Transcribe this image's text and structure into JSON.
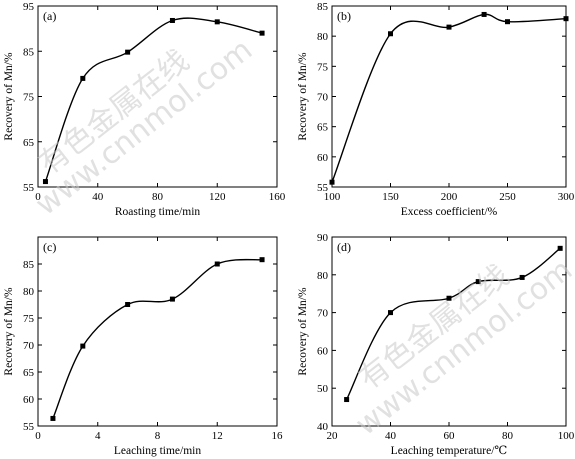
{
  "watermark": {
    "cn": "有色金属在线",
    "url": "www.cnnmol.com"
  },
  "chart_data": [
    {
      "type": "line",
      "panel_label": "(a)",
      "xlabel": "Roasting time/min",
      "ylabel": "Recovery of Mn/%",
      "xlim": [
        0,
        160
      ],
      "ylim": [
        55,
        95
      ],
      "xticks": [
        0,
        40,
        80,
        120,
        160
      ],
      "yticks": [
        55,
        65,
        75,
        85,
        95
      ],
      "x": [
        5,
        30,
        60,
        90,
        120,
        150
      ],
      "y": [
        56.2,
        79.0,
        84.8,
        91.8,
        91.5,
        89.0
      ],
      "grid": false
    },
    {
      "type": "line",
      "panel_label": "(b)",
      "xlabel": "Excess coefficient/%",
      "ylabel": "Recovery of Mn/%",
      "xlim": [
        100,
        300
      ],
      "ylim": [
        55,
        85
      ],
      "xticks": [
        100,
        150,
        200,
        250,
        300
      ],
      "yticks": [
        55,
        60,
        65,
        70,
        75,
        80,
        85
      ],
      "x": [
        100,
        150,
        200,
        230,
        250,
        300
      ],
      "y": [
        55.8,
        80.4,
        81.5,
        83.6,
        82.4,
        82.9
      ],
      "grid": false
    },
    {
      "type": "line",
      "panel_label": "(c)",
      "xlabel": "Leaching time/min",
      "ylabel": "Recovery of Mn/%",
      "xlim": [
        0,
        16
      ],
      "ylim": [
        55,
        90
      ],
      "xticks": [
        0,
        4,
        8,
        12,
        16
      ],
      "yticks": [
        55,
        60,
        65,
        70,
        75,
        80,
        85
      ],
      "x": [
        1,
        3,
        6,
        9,
        12,
        15
      ],
      "y": [
        56.4,
        69.8,
        77.5,
        78.5,
        85.0,
        85.8
      ],
      "grid": false
    },
    {
      "type": "line",
      "panel_label": "(d)",
      "xlabel": "Leaching temperature/℃",
      "ylabel": "Recovery of Mn/%",
      "xlim": [
        20,
        100
      ],
      "ylim": [
        40,
        90
      ],
      "xticks": [
        20,
        40,
        60,
        80,
        100
      ],
      "yticks": [
        40,
        50,
        60,
        70,
        80,
        90
      ],
      "x": [
        25,
        40,
        60,
        70,
        85,
        98
      ],
      "y": [
        47.0,
        70.0,
        73.8,
        78.2,
        79.3,
        87.0
      ],
      "grid": false
    }
  ]
}
